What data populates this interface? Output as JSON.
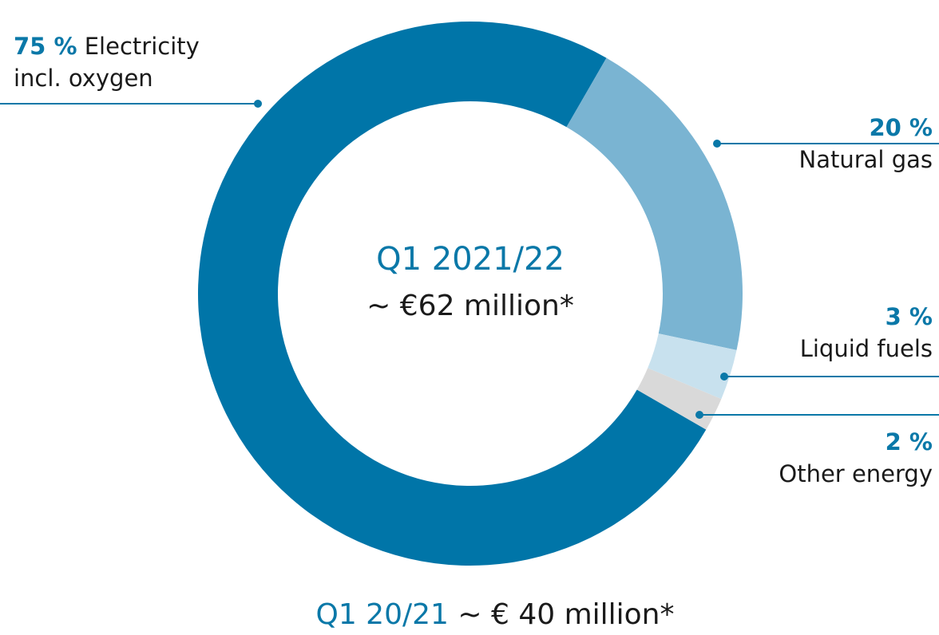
{
  "chart_data": {
    "type": "pie",
    "center_title": "Q1 2021/22",
    "center_value": "~ €62 million*",
    "footer_period": "Q1 20/21",
    "footer_value": "~ € 40 million*",
    "categories": [
      "Electricity incl. oxygen",
      "Natural gas",
      "Liquid fuels",
      "Other energy"
    ],
    "values": [
      75,
      20,
      3,
      2
    ],
    "value_labels": [
      "75 %",
      "20 %",
      "3 %",
      "2 %"
    ],
    "colors": [
      "#0075a8",
      "#7ab4d2",
      "#c8e1ee",
      "#d9d9d9"
    ]
  }
}
